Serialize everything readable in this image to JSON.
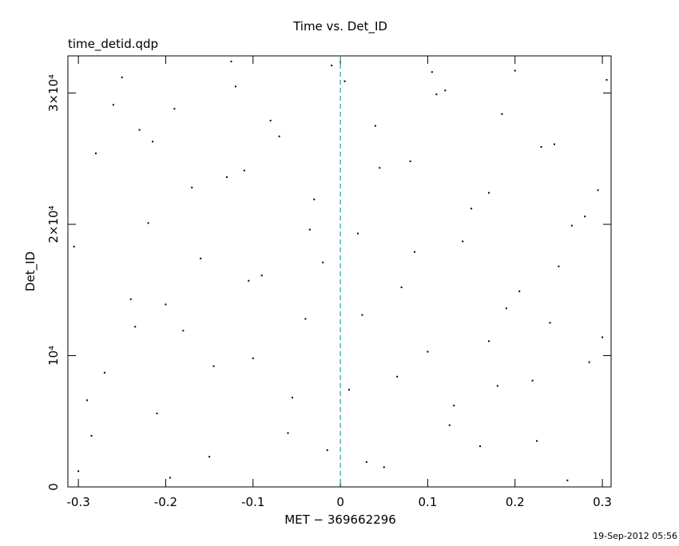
{
  "chart_data": {
    "type": "scatter",
    "title": "Time vs. Det_ID",
    "subtitle": "time_detid.qdp",
    "x_label": "MET − 369662296",
    "y_label": "Det_ID",
    "footer": "19-Sep-2012 05:56",
    "xlim": [
      -0.312,
      0.31
    ],
    "ylim": [
      0,
      32830
    ],
    "xticks": [
      -0.3,
      -0.2,
      -0.1,
      0,
      0.1,
      0.2,
      0.3
    ],
    "yticks": [
      0,
      {
        "value": 10000,
        "label": "10⁴"
      },
      {
        "value": 20000,
        "label": "2×10⁴"
      },
      {
        "value": 30000,
        "label": "3×10⁴"
      }
    ],
    "vlines": [
      {
        "x": 0,
        "color": "#20a0a8"
      }
    ],
    "color": "#000000",
    "x": [
      -0.3,
      -0.28,
      -0.27,
      -0.25,
      -0.24,
      -0.22,
      -0.21,
      -0.19,
      -0.18,
      -0.16,
      -0.15,
      -0.13,
      -0.12,
      -0.1,
      -0.09,
      -0.07,
      -0.06,
      -0.04,
      -0.03,
      -0.01,
      0.01,
      0.02,
      0.04,
      0.05,
      0.07,
      0.08,
      0.1,
      0.11,
      0.13,
      0.14,
      0.16,
      0.17,
      0.19,
      0.2,
      0.22,
      0.23,
      0.25,
      0.26,
      0.28,
      0.3,
      -0.305,
      -0.285,
      -0.26,
      -0.235,
      -0.215,
      -0.195,
      -0.17,
      -0.145,
      -0.125,
      -0.105,
      -0.08,
      -0.055,
      -0.035,
      -0.015,
      0.005,
      0.025,
      0.045,
      0.065,
      0.085,
      0.105,
      0.125,
      0.15,
      0.17,
      0.185,
      0.205,
      0.225,
      0.245,
      0.265,
      0.285,
      0.305,
      -0.29,
      -0.2,
      -0.11,
      -0.02,
      0.03,
      0.12,
      0.18,
      0.24,
      0.295,
      -0.23
    ],
    "values": [
      1200,
      25400,
      8700,
      31200,
      14300,
      20100,
      5600,
      28800,
      11900,
      17400,
      2300,
      23600,
      30500,
      9800,
      16100,
      26700,
      4100,
      12800,
      21900,
      32100,
      7400,
      19300,
      27500,
      1500,
      15200,
      24800,
      10300,
      29900,
      6200,
      18700,
      3100,
      22400,
      13600,
      31700,
      8100,
      25900,
      16800,
      500,
      20600,
      11400,
      18300,
      3900,
      29100,
      12200,
      26300,
      700,
      22800,
      9200,
      32400,
      15700,
      27900,
      6800,
      19600,
      2800,
      30900,
      13100,
      24300,
      8400,
      17900,
      31600,
      4700,
      21200,
      11100,
      28400,
      14900,
      3500,
      26100,
      19900,
      9500,
      31000,
      6600,
      13900,
      24100,
      17100,
      1900,
      30200,
      7700,
      12500,
      22600,
      27200
    ]
  }
}
